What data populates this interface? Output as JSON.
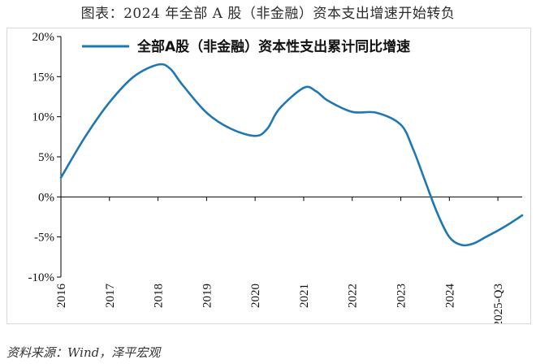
{
  "figure": {
    "title": "图表：2024 年全部 A 股（非金融）资本支出增速开始转负",
    "source": "资料来源：Wind，泽平宏观"
  },
  "colors": {
    "line": "#1f77b4",
    "axis": "#000000",
    "frame": "#d9d9d9"
  },
  "chart_data": {
    "type": "line",
    "title": "",
    "xlabel": "",
    "ylabel": "",
    "x_ticks": [
      "2016",
      "2017",
      "2018",
      "2019",
      "2020",
      "2021",
      "2022",
      "2023",
      "2024",
      "2025-Q3"
    ],
    "y_ticks": [
      "20%",
      "15%",
      "10%",
      "5%",
      "0%",
      "-5%",
      "-10%"
    ],
    "y_tick_values": [
      20,
      15,
      10,
      5,
      0,
      -5,
      -10
    ],
    "ylim": [
      -10,
      20
    ],
    "x_range": [
      2016,
      2025.5
    ],
    "grid": false,
    "legend_position": "top",
    "series": [
      {
        "name": "全部A股（非金融）资本性支出累计同比增速",
        "x": [
          2016,
          2016.5,
          2017,
          2017.5,
          2018,
          2018.25,
          2018.5,
          2019,
          2019.5,
          2020,
          2020.25,
          2020.5,
          2021,
          2021.25,
          2021.5,
          2022,
          2022.5,
          2023,
          2023.25,
          2023.5,
          2023.75,
          2024,
          2024.25,
          2024.5,
          2024.75,
          2025,
          2025.25,
          2025.5
        ],
        "values": [
          2.4,
          7.5,
          11.8,
          15.0,
          16.5,
          16.0,
          14.0,
          10.5,
          8.5,
          7.6,
          8.5,
          11.0,
          13.6,
          13.2,
          12.0,
          10.6,
          10.5,
          9.0,
          6.0,
          2.0,
          -2.0,
          -5.0,
          -6.0,
          -5.8,
          -5.0,
          -4.2,
          -3.3,
          -2.3
        ]
      }
    ]
  }
}
